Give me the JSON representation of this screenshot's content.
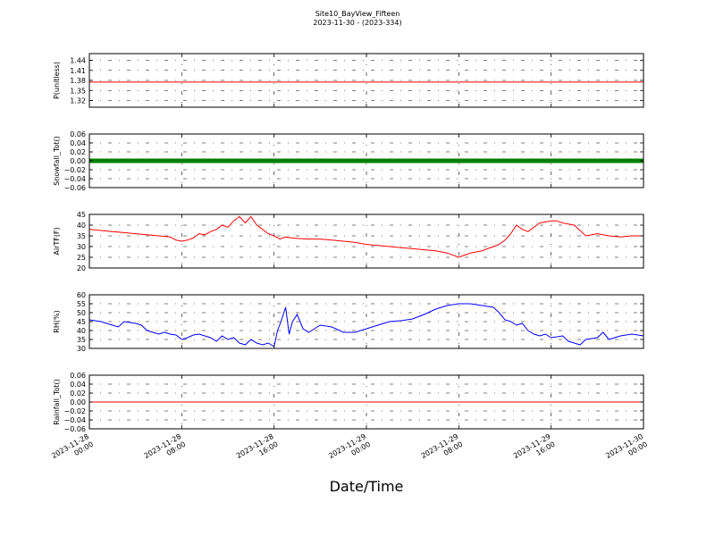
{
  "figure": {
    "title": "Site10_BayView_Fifteen",
    "subtitle": "2023-11-30 - (2023-334)",
    "xlabel": "Date/Time",
    "x_ticks": [
      {
        "line1": "2023-11-28",
        "line2": "00:00"
      },
      {
        "line1": "2023-11-28",
        "line2": "08:00"
      },
      {
        "line1": "2023-11-28",
        "line2": "16:00"
      },
      {
        "line1": "2023-11-29",
        "line2": "00:00"
      },
      {
        "line1": "2023-11-29",
        "line2": "08:00"
      },
      {
        "line1": "2023-11-29",
        "line2": "16:00"
      },
      {
        "line1": "2023-11-30",
        "line2": "00:00"
      }
    ]
  },
  "chart_data": [
    {
      "type": "line",
      "ylabel": "P(unitless)",
      "ylim": [
        1.3,
        1.46
      ],
      "yticks": [
        1.32,
        1.35,
        1.38,
        1.41,
        1.44
      ],
      "ytick_labels": [
        "1.32",
        "1.35",
        "1.38",
        "1.41",
        "1.44"
      ],
      "xlim": [
        0,
        48
      ],
      "grid": true,
      "marker": false,
      "series": [
        {
          "color": "#ff0000",
          "x": [
            0,
            48
          ],
          "y": [
            1.375,
            1.375
          ]
        }
      ]
    },
    {
      "type": "line",
      "ylabel": "Snowfall_Tot()",
      "ylim": [
        -0.06,
        0.06
      ],
      "yticks": [
        -0.06,
        -0.04,
        -0.02,
        0.0,
        0.02,
        0.04,
        0.06
      ],
      "ytick_labels": [
        "−0.06",
        "−0.04",
        "−0.02",
        "0.00",
        "0.02",
        "0.04",
        "0.06"
      ],
      "xlim": [
        0,
        48
      ],
      "grid": true,
      "marker": true,
      "series": [
        {
          "color": "#008000",
          "x": [
            0,
            48
          ],
          "y": [
            0,
            0
          ]
        }
      ]
    },
    {
      "type": "line",
      "ylabel": "AirTF(F)",
      "ylim": [
        20,
        45
      ],
      "yticks": [
        20,
        25,
        30,
        35,
        40,
        45
      ],
      "ytick_labels": [
        "20",
        "25",
        "30",
        "35",
        "40",
        "45"
      ],
      "xlim": [
        0,
        48
      ],
      "grid": true,
      "marker": false,
      "series": [
        {
          "color": "#ff0000",
          "x": [
            0,
            1,
            2,
            3,
            4,
            5,
            6,
            7,
            7.5,
            8,
            8.5,
            9,
            9.5,
            10,
            10.5,
            11,
            11.5,
            12,
            12.5,
            13,
            13.5,
            14,
            14.5,
            15,
            15.5,
            16,
            16.5,
            17,
            17.5,
            18,
            19,
            20,
            21,
            22,
            23,
            24,
            25,
            26,
            27,
            28,
            29,
            30,
            31,
            32,
            32.5,
            33,
            33.5,
            34,
            34.5,
            35,
            35.5,
            36,
            36.5,
            37,
            37.5,
            38,
            39,
            40,
            40.5,
            41,
            42,
            43,
            44,
            45,
            46,
            47,
            48
          ],
          "y": [
            38,
            37.5,
            37,
            36.5,
            36,
            35.5,
            35,
            34.5,
            33,
            32.5,
            33,
            34,
            36,
            35.5,
            37,
            38,
            40,
            39,
            42,
            44,
            41,
            44,
            40,
            38,
            36,
            35,
            33.5,
            34.5,
            34,
            33.8,
            33.5,
            33.5,
            33,
            32.5,
            32,
            31,
            30.5,
            30,
            29.5,
            29,
            28.5,
            28,
            27,
            25,
            26,
            27,
            27.5,
            28,
            29,
            30,
            31,
            33,
            36,
            40,
            38,
            37,
            41,
            42,
            42,
            41,
            40,
            35,
            36,
            35,
            34.5,
            35,
            35
          ]
        }
      ]
    },
    {
      "type": "line",
      "ylabel": "RH(%)",
      "ylim": [
        30,
        60
      ],
      "yticks": [
        30,
        35,
        40,
        45,
        50,
        55,
        60
      ],
      "ytick_labels": [
        "30",
        "35",
        "40",
        "45",
        "50",
        "55",
        "60"
      ],
      "xlim": [
        0,
        48
      ],
      "grid": true,
      "marker": false,
      "series": [
        {
          "color": "#0000ff",
          "x": [
            0,
            1,
            2,
            2.5,
            3,
            4,
            4.5,
            5,
            5.5,
            6,
            6.5,
            7,
            7.5,
            8,
            8.5,
            9,
            9.5,
            10,
            10.5,
            11,
            11.5,
            12,
            12.5,
            13,
            13.5,
            14,
            14.5,
            15,
            15.5,
            16,
            16.3,
            16.6,
            17,
            17.3,
            17.6,
            18,
            18.5,
            19,
            19.5,
            20,
            21,
            22,
            23,
            24,
            25,
            26,
            27,
            28,
            29,
            30,
            31,
            32,
            33,
            34,
            35,
            35.5,
            36,
            36.5,
            37,
            37.5,
            38,
            38.5,
            39,
            39.5,
            40,
            41,
            41.5,
            42,
            42.5,
            43,
            44,
            44.5,
            45,
            46,
            47,
            48
          ],
          "y": [
            46,
            45,
            43,
            42,
            45,
            44,
            43,
            40,
            39,
            38,
            39,
            38,
            37.5,
            35,
            36,
            37.5,
            38,
            37,
            36,
            34,
            37,
            35,
            36,
            33,
            32,
            35,
            33,
            32,
            33,
            31,
            40,
            45,
            53,
            38,
            45,
            49,
            41,
            39,
            41,
            43,
            42,
            39,
            39,
            41,
            43,
            45,
            45.5,
            46.5,
            49,
            52,
            54,
            55,
            55,
            54,
            53,
            50,
            46,
            45,
            43,
            44,
            40,
            38,
            37,
            38,
            36,
            37,
            34,
            33,
            32,
            35,
            36,
            39,
            35,
            37,
            38,
            37
          ]
        }
      ]
    },
    {
      "type": "line",
      "ylabel": "Rainfall_Tot()",
      "ylim": [
        -0.06,
        0.06
      ],
      "yticks": [
        -0.06,
        -0.04,
        -0.02,
        0.0,
        0.02,
        0.04,
        0.06
      ],
      "ytick_labels": [
        "−0.06",
        "−0.04",
        "−0.02",
        "0.00",
        "0.02",
        "0.04",
        "0.06"
      ],
      "xlim": [
        0,
        48
      ],
      "grid": true,
      "marker": false,
      "series": [
        {
          "color": "#ff0000",
          "x": [
            0,
            48
          ],
          "y": [
            0,
            0
          ]
        }
      ]
    }
  ]
}
